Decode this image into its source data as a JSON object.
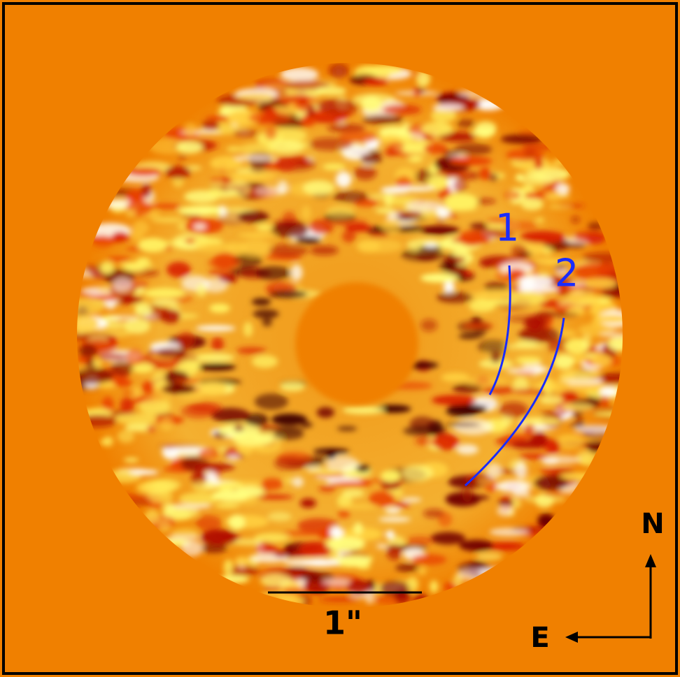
{
  "labels": {
    "arc_1": "1",
    "arc_2": "2"
  },
  "scale_bar": "1\"",
  "compass": {
    "north": "N",
    "east": "E"
  }
}
